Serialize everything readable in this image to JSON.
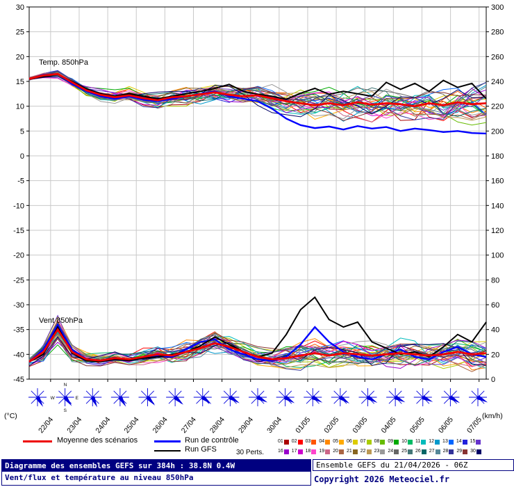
{
  "chart": {
    "temp_label": "Temp. 850hPa",
    "wind_label": "Vent 850hPa",
    "unit_left": "(°C)",
    "unit_right": "(km/h)"
  },
  "chart_data": {
    "type": "line",
    "title": "Diagramme des ensembles GEFS sur 384h : 38.8N 0.4W",
    "subtitle": "Vent/flux et température au niveau 850hPa",
    "x_total_hours": 384,
    "x_step_hours": 12,
    "x_tick_labels": [
      "22/04",
      "23/04",
      "24/04",
      "25/04",
      "26/04",
      "27/04",
      "28/04",
      "29/04",
      "30/04",
      "01/05",
      "02/05",
      "03/05",
      "04/05",
      "05/05",
      "06/05",
      "07/05"
    ],
    "y_left": {
      "label": "(°C)",
      "min": -45,
      "max": 30,
      "step": 5
    },
    "y_right": {
      "label": "(km/h)",
      "min": 0,
      "max": 300,
      "step": 20
    },
    "colors": {
      "mean": "#ee0000",
      "control": "#0000ff",
      "gfs": "#000000",
      "grid": "#c9c9c9"
    },
    "series": {
      "temp_mean": [
        15.5,
        16.2,
        16.5,
        14.8,
        13.2,
        12.3,
        11.8,
        12.2,
        11.6,
        11.2,
        11.8,
        12.0,
        12.4,
        12.8,
        12.3,
        12.0,
        12.2,
        11.6,
        11.0,
        10.6,
        10.2,
        10.6,
        10.2,
        10.8,
        10.3,
        10.6,
        10.4,
        10.0,
        10.6,
        10.2,
        10.8,
        10.4,
        10.6
      ],
      "temp_control": [
        15.5,
        16.3,
        16.5,
        14.5,
        13.0,
        12.0,
        11.5,
        12.0,
        11.3,
        11.0,
        11.5,
        12.0,
        12.5,
        13.0,
        12.0,
        11.5,
        11.0,
        9.5,
        7.5,
        6.2,
        5.6,
        5.9,
        5.3,
        6.0,
        5.5,
        5.8,
        5.0,
        5.5,
        5.2,
        4.8,
        5.0,
        4.6,
        4.5
      ],
      "temp_gfs": [
        15.5,
        16.0,
        16.4,
        15.0,
        13.5,
        12.5,
        12.0,
        12.5,
        12.0,
        11.5,
        12.0,
        12.5,
        13.0,
        13.6,
        14.4,
        13.0,
        12.4,
        12.0,
        11.4,
        12.6,
        13.6,
        12.4,
        13.0,
        12.5,
        12.0,
        14.8,
        13.4,
        14.6,
        13.0,
        15.2,
        13.8,
        14.6,
        11.5
      ],
      "temp_spread": [
        0.4,
        0.6,
        0.9,
        1.1,
        1.3,
        1.5,
        1.6,
        1.8,
        1.8,
        2.0,
        2.0,
        2.2,
        2.2,
        2.4,
        2.4,
        2.6,
        2.6,
        2.8,
        3.0,
        3.2,
        3.4,
        3.4,
        3.6,
        3.6,
        3.8,
        3.8,
        4.0,
        4.0,
        4.2,
        4.2,
        4.4,
        4.4,
        4.6
      ],
      "wind_mean": [
        14,
        22,
        40,
        22,
        16,
        15,
        17,
        16,
        18,
        20,
        19,
        22,
        25,
        29,
        26,
        22,
        18,
        16,
        17,
        19,
        21,
        19,
        21,
        20,
        19,
        20,
        21,
        20,
        19,
        20,
        22,
        20,
        21
      ],
      "wind_control": [
        14,
        24,
        44,
        24,
        16,
        14,
        16,
        15,
        17,
        19,
        18,
        24,
        30,
        32,
        24,
        20,
        16,
        15,
        18,
        28,
        42,
        30,
        22,
        18,
        16,
        20,
        24,
        18,
        16,
        22,
        26,
        20,
        18
      ],
      "wind_gfs": [
        14,
        20,
        42,
        21,
        15,
        14,
        16,
        15,
        17,
        18,
        20,
        22,
        27,
        34,
        28,
        22,
        18,
        21,
        36,
        56,
        66,
        48,
        42,
        46,
        30,
        25,
        20,
        22,
        18,
        26,
        36,
        30,
        46
      ],
      "wind_spread": [
        4,
        9,
        13,
        9,
        6,
        6,
        6,
        6,
        7,
        8,
        8,
        10,
        12,
        13,
        10,
        9,
        8,
        9,
        10,
        12,
        13,
        12,
        12,
        12,
        12,
        12,
        13,
        13,
        13,
        14,
        14,
        14,
        15
      ]
    },
    "members": {
      "count": 30,
      "colors": [
        "#aa0000",
        "#ff0000",
        "#ff5500",
        "#ff8800",
        "#ffaa00",
        "#ddcc00",
        "#aacc00",
        "#66bb00",
        "#00aa00",
        "#00bb66",
        "#00bbbb",
        "#0099cc",
        "#0066ff",
        "#2222dd",
        "#6633cc",
        "#9900cc",
        "#cc00cc",
        "#ff44cc",
        "#cc6688",
        "#aa6644",
        "#886622",
        "#bb9955",
        "#999999",
        "#666666",
        "#447777",
        "#006666",
        "#558899",
        "#333399",
        "#883333",
        "#000066"
      ]
    },
    "wind_barbs": {
      "color": "#0000dd",
      "directions_deg": [
        150,
        142,
        155,
        148,
        138,
        132,
        128,
        122,
        118,
        122,
        119,
        124,
        120,
        117,
        115,
        121,
        118
      ]
    }
  },
  "legend": {
    "mean": "Moyenne des scénarios",
    "control": "Run de contrôle",
    "gfs": "Run GFS",
    "perts": "30 Perts.",
    "pert_numbers": [
      "01",
      "02",
      "03",
      "04",
      "05",
      "06",
      "07",
      "08",
      "09",
      "10",
      "11",
      "12",
      "13",
      "14",
      "15",
      "16",
      "17",
      "18",
      "19",
      "20",
      "21",
      "22",
      "23",
      "24",
      "25",
      "26",
      "27",
      "28",
      "29",
      "30"
    ]
  },
  "footer": {
    "title": "Diagramme des ensembles GEFS sur 384h : 38.8N 0.4W",
    "subtitle": "Vent/flux et température au niveau 850hPa",
    "run_info": "Ensemble GEFS du 21/04/2026 - 06Z",
    "copyright": "Copyright 2026 Meteociel.fr"
  }
}
